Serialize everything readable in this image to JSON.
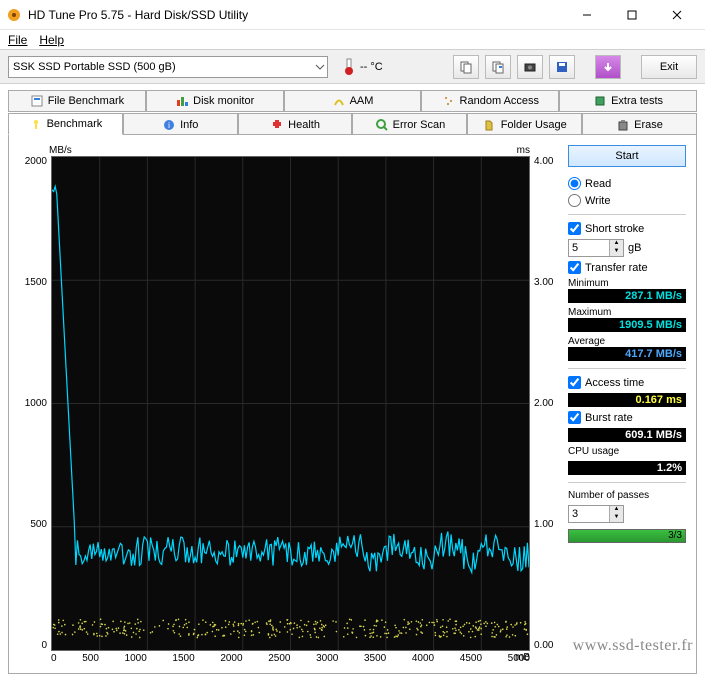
{
  "window": {
    "title": "HD Tune Pro 5.75 - Hard Disk/SSD Utility"
  },
  "menu": {
    "file": "File",
    "help": "Help"
  },
  "toolbar": {
    "device": "SSK SSD Portable SSD (500 gB)",
    "temp": "-- °C",
    "exit": "Exit"
  },
  "tabs": {
    "upper": [
      "File Benchmark",
      "Disk monitor",
      "AAM",
      "Random Access",
      "Extra tests"
    ],
    "lower": [
      "Benchmark",
      "Info",
      "Health",
      "Error Scan",
      "Folder Usage",
      "Erase"
    ]
  },
  "chart": {
    "yleft_unit": "MB/s",
    "yright_unit": "ms",
    "x_unit": "mB",
    "yleft_ticks": [
      "2000",
      "1500",
      "1000",
      "500",
      "0"
    ],
    "yright_ticks": [
      "4.00",
      "3.00",
      "2.00",
      "1.00",
      "0.00"
    ],
    "x_ticks": [
      "0",
      "500",
      "1000",
      "1500",
      "2000",
      "2500",
      "3000",
      "3500",
      "4000",
      "4500",
      "5000"
    ],
    "series_line_color": "#00d8ff",
    "series_access_color": "#d8d850",
    "grid_color": "#2a2a2a",
    "bg": "#0a0a0a",
    "transfer_initial_peak": 1900,
    "transfer_plateau": 400,
    "transfer_plateau_start_x": 250,
    "noise_amplitude": 60,
    "access_band_ms": [
      0.1,
      0.25
    ]
  },
  "controls": {
    "start": "Start",
    "read": "Read",
    "write": "Write",
    "short_stroke": "Short stroke",
    "short_stroke_val": "5",
    "short_stroke_unit": "gB",
    "transfer_rate": "Transfer rate",
    "minimum": "Minimum",
    "minimum_val": "287.1 MB/s",
    "maximum": "Maximum",
    "maximum_val": "1909.5 MB/s",
    "average": "Average",
    "average_val": "417.7 MB/s",
    "access_time": "Access time",
    "access_time_val": "0.167 ms",
    "burst_rate": "Burst rate",
    "burst_rate_val": "609.1 MB/s",
    "cpu_usage": "CPU usage",
    "cpu_usage_val": "1.2%",
    "num_passes": "Number of passes",
    "num_passes_val": "3",
    "pass_progress": "3/3"
  },
  "watermark": "www.ssd-tester.fr"
}
